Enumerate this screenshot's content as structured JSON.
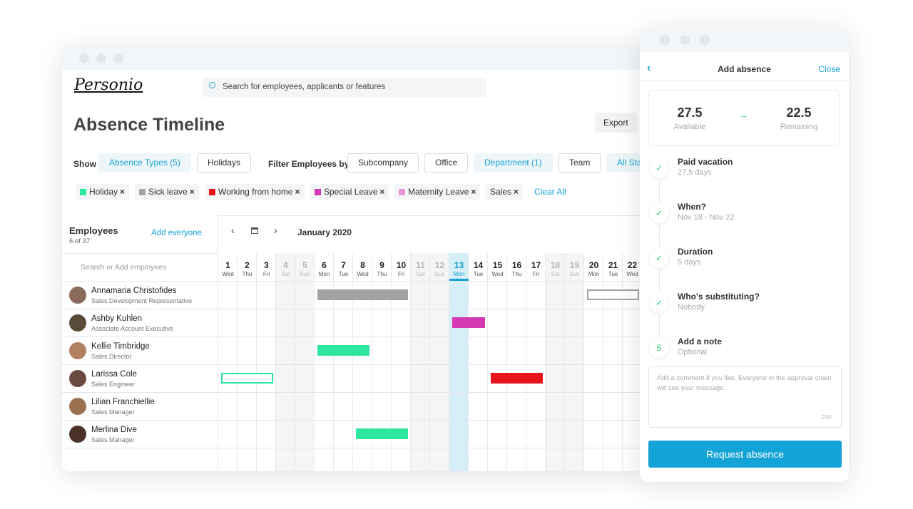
{
  "header": {
    "logo": "Personio",
    "search_placeholder": "Search for employees, applicants or features"
  },
  "page": {
    "title": "Absence Timeline",
    "export": "Export"
  },
  "filters": {
    "show_label": "Show",
    "show_buttons": [
      {
        "label": "Absence Types (5)",
        "active": true
      },
      {
        "label": "Holidays",
        "active": false
      }
    ],
    "filter_label": "Filter Employees by",
    "filter_buttons": [
      {
        "label": "Subcompany",
        "active": false
      },
      {
        "label": "Office",
        "active": false
      },
      {
        "label": "Department (1)",
        "active": true
      },
      {
        "label": "Team",
        "active": false
      },
      {
        "label": "All Status",
        "active": true
      }
    ]
  },
  "tags": [
    {
      "label": "Holiday",
      "color": "#2ee59d"
    },
    {
      "label": "Sick leave",
      "color": "#a3a3a3"
    },
    {
      "label": "Working from home",
      "color": "#e8141c"
    },
    {
      "label": "Special Leave",
      "color": "#d439b4"
    },
    {
      "label": "Maternity Leave",
      "color": "#e598d6"
    },
    {
      "label": "Sales"
    }
  ],
  "clear_all": "Clear All",
  "employees": {
    "title": "Employees",
    "count": "6 of 37",
    "add": "Add everyone",
    "search_placeholder": "Search or Add employees",
    "list": [
      {
        "name": "Annamaria Christofides",
        "role": "Sales Development Representative",
        "avatar": "#8a6a5a"
      },
      {
        "name": "Ashby Kuhlen",
        "role": "Associate Account Executive",
        "avatar": "#5a4a3a"
      },
      {
        "name": "Kellie Timbridge",
        "role": "Sales Director",
        "avatar": "#b08060"
      },
      {
        "name": "Larissa Cole",
        "role": "Sales Engineer",
        "avatar": "#6a4a40"
      },
      {
        "name": "Lilian Franchiellie",
        "role": "Sales Manager",
        "avatar": "#9a7050"
      },
      {
        "name": "Merlina Dive",
        "role": "Sales Manager",
        "avatar": "#4a3228"
      }
    ]
  },
  "calendar": {
    "month": "January 2020",
    "highlighted_day": 13,
    "days": [
      {
        "num": 1,
        "dow": "Wed"
      },
      {
        "num": 2,
        "dow": "Thu"
      },
      {
        "num": 3,
        "dow": "Fri"
      },
      {
        "num": 4,
        "dow": "Sat",
        "weekend": true
      },
      {
        "num": 5,
        "dow": "Sun",
        "weekend": true
      },
      {
        "num": 6,
        "dow": "Mon"
      },
      {
        "num": 7,
        "dow": "Tue"
      },
      {
        "num": 8,
        "dow": "Wed"
      },
      {
        "num": 9,
        "dow": "Thu"
      },
      {
        "num": 10,
        "dow": "Fri"
      },
      {
        "num": 11,
        "dow": "Sat",
        "weekend": true
      },
      {
        "num": 12,
        "dow": "Sun",
        "weekend": true
      },
      {
        "num": 13,
        "dow": "Mon"
      },
      {
        "num": 14,
        "dow": "Tue"
      },
      {
        "num": 15,
        "dow": "Wed"
      },
      {
        "num": 16,
        "dow": "Thu"
      },
      {
        "num": 17,
        "dow": "Fri"
      },
      {
        "num": 18,
        "dow": "Sat",
        "weekend": true
      },
      {
        "num": 19,
        "dow": "Sun",
        "weekend": true
      },
      {
        "num": 20,
        "dow": "Mon"
      },
      {
        "num": 21,
        "dow": "Tue"
      },
      {
        "num": 22,
        "dow": "Wed"
      }
    ],
    "absences": [
      {
        "employee": 0,
        "start": 6,
        "end": 10,
        "color": "#a3a3a3",
        "outline": false
      },
      {
        "employee": 0,
        "start": 20,
        "end": 22,
        "color": "#a3a3a3",
        "outline": true
      },
      {
        "employee": 1,
        "start": 13,
        "end": 14,
        "color": "#d439b4",
        "outline": false
      },
      {
        "employee": 2,
        "start": 6,
        "end": 8,
        "color": "#2ee59d",
        "outline": false
      },
      {
        "employee": 3,
        "start": 1,
        "end": 3,
        "color": "#2ee59d",
        "outline": true
      },
      {
        "employee": 3,
        "start": 15,
        "end": 17,
        "color": "#e8141c",
        "outline": false
      },
      {
        "employee": 5,
        "start": 8,
        "end": 10,
        "color": "#2ee59d",
        "outline": false
      }
    ]
  },
  "panel": {
    "title": "Add absence",
    "close": "Close",
    "available": {
      "value": "27.5",
      "label": "Available"
    },
    "remaining": {
      "value": "22.5",
      "label": "Remaining"
    },
    "steps": [
      {
        "title": "Paid vacation",
        "detail": "27.5 days"
      },
      {
        "title": "When?",
        "detail": "Nov 18 - Nov 22"
      },
      {
        "title": "Duration",
        "detail": "5 days"
      },
      {
        "title": "Who's substituting?",
        "detail": "Nobody"
      },
      {
        "number": "5",
        "title": "Add a note",
        "detail": "Optional"
      }
    ],
    "note_placeholder": "Add a comment if you like. Everyone in the approval chain will see your message.",
    "note_limit": "250",
    "button": "Request absence"
  }
}
